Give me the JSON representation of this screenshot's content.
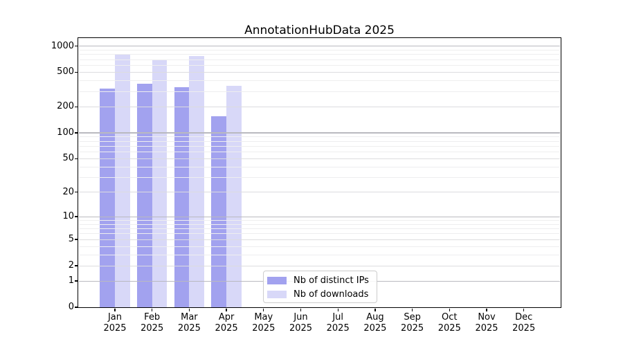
{
  "chart_data": {
    "type": "bar",
    "title": "AnnotationHubData 2025",
    "categories": [
      "Jan",
      "Feb",
      "Mar",
      "Apr",
      "May",
      "Jun",
      "Jul",
      "Aug",
      "Sep",
      "Oct",
      "Nov",
      "Dec"
    ],
    "x_tick_second_line": "2025",
    "series": [
      {
        "name": "Nb of distinct IPs",
        "color": "#a2a2ef",
        "values": [
          324,
          366,
          335,
          155,
          0,
          0,
          0,
          0,
          0,
          0,
          0,
          0
        ]
      },
      {
        "name": "Nb of downloads",
        "color": "#d8d8f8",
        "values": [
          810,
          707,
          775,
          350,
          0,
          0,
          0,
          0,
          0,
          0,
          0,
          0
        ]
      }
    ],
    "y_ticks": [
      0,
      1,
      2,
      5,
      10,
      20,
      50,
      100,
      200,
      500,
      1000
    ],
    "y_scale": "log10(value+1)",
    "ylim": [
      0,
      1240
    ],
    "grid": true,
    "legend_position": "lower center",
    "frame_color": "#000000",
    "grid_major_color": "#b9b9bf",
    "grid_mid_color": "#dcdcdf",
    "grid_minor_color": "#eeeeef"
  }
}
